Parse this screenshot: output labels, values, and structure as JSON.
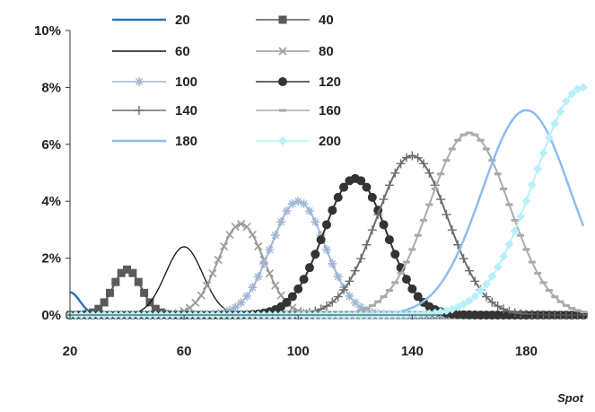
{
  "chart_data": {
    "type": "line",
    "title": "",
    "xlabel": "Spot",
    "ylabel": "",
    "xlim": [
      20,
      200
    ],
    "ylim": [
      0,
      10
    ],
    "x_ticks": [
      "20",
      "60",
      "100",
      "140",
      "180"
    ],
    "x_tick_values": [
      20,
      60,
      100,
      140,
      180
    ],
    "y_ticks": [
      "0%",
      "2%",
      "4%",
      "6%",
      "8%",
      "10%"
    ],
    "y_tick_values": [
      0,
      2,
      4,
      6,
      8,
      10
    ],
    "grid": false,
    "legend_position": "top",
    "series": [
      {
        "name": "20",
        "peak_x": 20,
        "peak_y": 0.8,
        "sigma": 3.5,
        "color": "#2e75b6",
        "marker": "none",
        "dense": false
      },
      {
        "name": "40",
        "peak_x": 40,
        "peak_y": 1.6,
        "sigma": 5.0,
        "color": "#5a5a5a",
        "marker": "square",
        "dense": false
      },
      {
        "name": "60",
        "peak_x": 60,
        "peak_y": 2.4,
        "sigma": 6.5,
        "color": "#111111",
        "marker": "none",
        "dense": false
      },
      {
        "name": "80",
        "peak_x": 80,
        "peak_y": 3.2,
        "sigma": 8.0,
        "color": "#9a9a9a",
        "marker": "x",
        "dense": false
      },
      {
        "name": "100",
        "peak_x": 100,
        "peak_y": 4.0,
        "sigma": 9.5,
        "color": "#9fb7d2",
        "marker": "asterisk",
        "dense": false
      },
      {
        "name": "120",
        "peak_x": 120,
        "peak_y": 4.8,
        "sigma": 11.0,
        "color": "#333333",
        "marker": "circle",
        "dense": false
      },
      {
        "name": "140",
        "peak_x": 140,
        "peak_y": 5.6,
        "sigma": 12.5,
        "color": "#6e6e6e",
        "marker": "plus",
        "dense": false
      },
      {
        "name": "160",
        "peak_x": 160,
        "peak_y": 6.4,
        "sigma": 14.0,
        "color": "#aaaaaa",
        "marker": "dash",
        "dense": false
      },
      {
        "name": "180",
        "peak_x": 180,
        "peak_y": 7.2,
        "sigma": 15.5,
        "color": "#8fbbf0",
        "marker": "none",
        "dense": true
      },
      {
        "name": "200",
        "peak_x": 200,
        "peak_y": 8.0,
        "sigma": 17.0,
        "color": "#b8f0fa",
        "marker": "diamond",
        "dense": true
      }
    ]
  }
}
